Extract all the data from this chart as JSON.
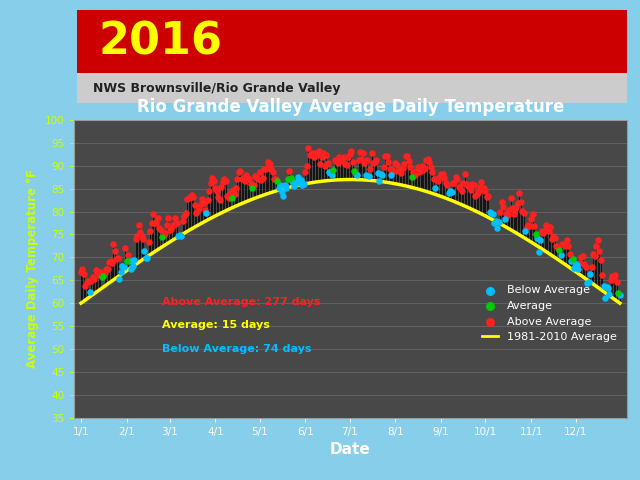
{
  "title": "Rio Grande Valley Average Daily Temperature",
  "xlabel": "Date",
  "ylabel": "Average Daily Temperature °F",
  "ylim": [
    35,
    100
  ],
  "yticks": [
    35,
    40,
    45,
    50,
    55,
    60,
    65,
    70,
    75,
    80,
    85,
    90,
    95,
    100
  ],
  "xtick_labels": [
    "1/1",
    "2/1",
    "3/1",
    "4/1",
    "5/1",
    "6/1",
    "7/1",
    "8/1",
    "9/1",
    "10/1",
    "11/1",
    "12/1"
  ],
  "figure_bg": "#87CEEB",
  "panel_bg": "#5a5a5a",
  "plot_bg": "#484848",
  "title_color": "white",
  "ylabel_color": "#ccff00",
  "xlabel_color": "white",
  "ytick_color": "#ccff00",
  "xtick_color": "white",
  "grid_color": "#666666",
  "above_color": "#ff2020",
  "below_color": "#00bfff",
  "avg_color": "#00cc00",
  "curve_color": "#ffff00",
  "text_above": "Above Average: 277 days",
  "text_avg": "Average: 15 days",
  "text_below": "Below Average: 74 days",
  "header_red_bg": "#cc0000",
  "header_year": "2016",
  "header_subtitle": "NWS Brownsville/Rio Grande Valley",
  "header_year_color": "#ffff00",
  "header_subtitle_color": "#222222",
  "month_starts": [
    0,
    31,
    60,
    91,
    121,
    152,
    182,
    213,
    244,
    274,
    305,
    335
  ]
}
